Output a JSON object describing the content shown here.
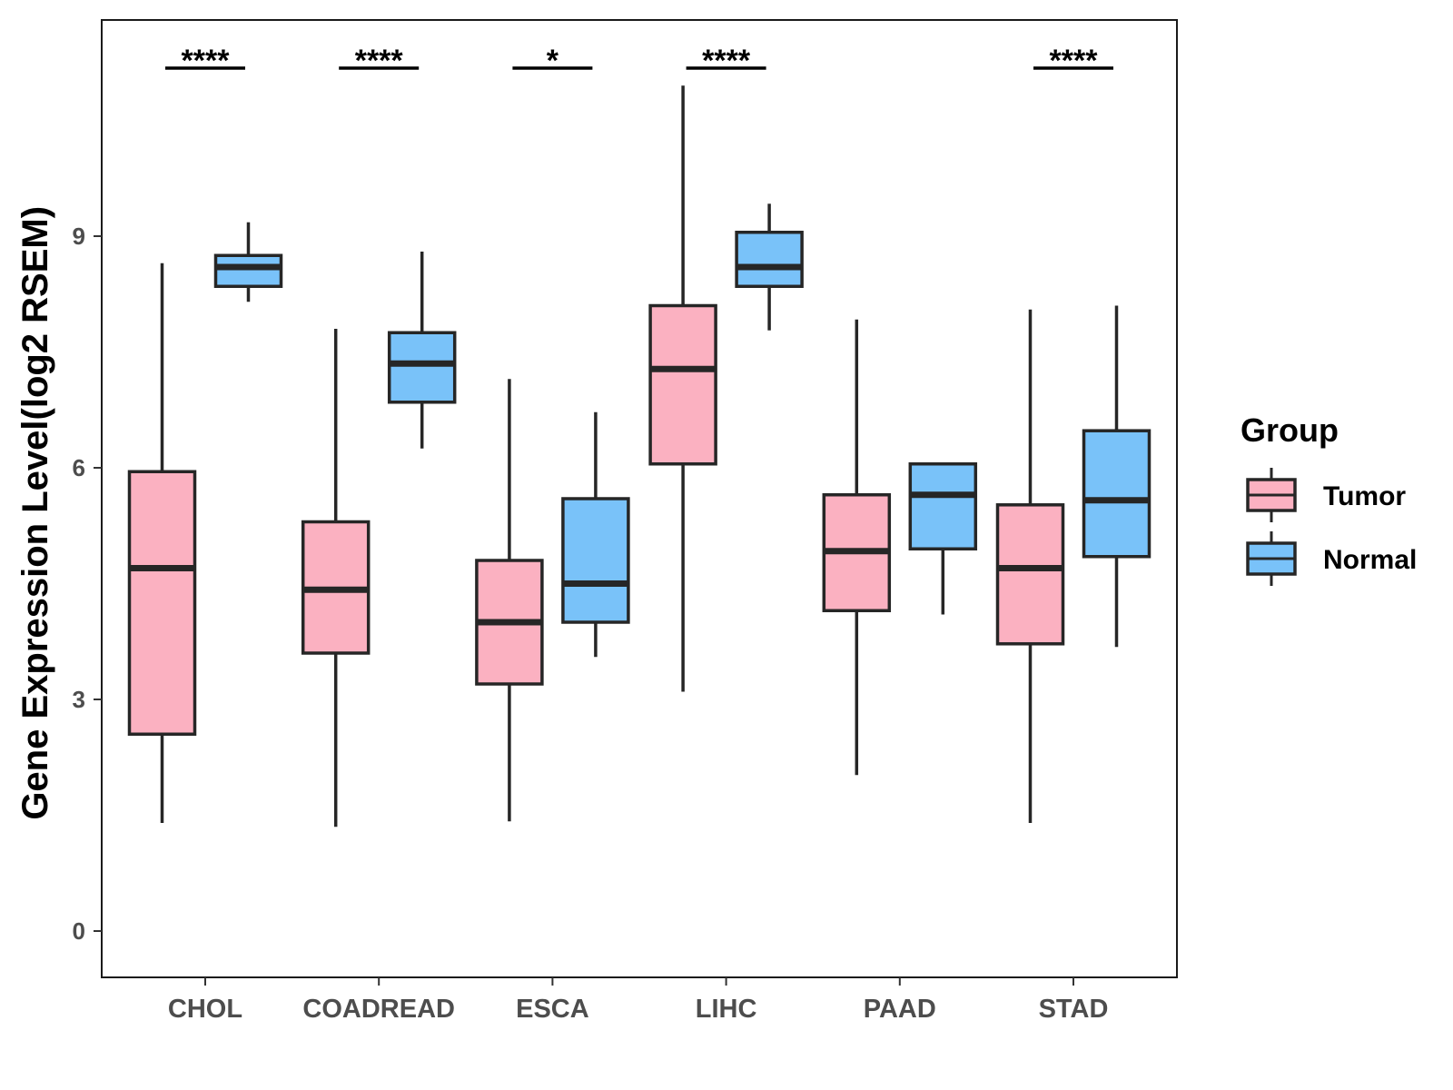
{
  "chart_data": {
    "type": "box",
    "title": "",
    "xlabel": "",
    "ylabel": "Gene Expression Level(log2 RSEM)",
    "ylim": [
      -0.6,
      11.8
    ],
    "yticks": [
      0,
      3,
      6,
      9
    ],
    "categories": [
      "CHOL",
      "COADREAD",
      "ESCA",
      "LIHC",
      "PAAD",
      "STAD"
    ],
    "legend": {
      "title": "Group",
      "position": "right",
      "entries": [
        {
          "name": "Tumor",
          "color": "#FBB1C1"
        },
        {
          "name": "Normal",
          "color": "#79C2F9"
        }
      ]
    },
    "series": [
      {
        "name": "Tumor",
        "color": "#FBB1C1",
        "boxes": [
          {
            "category": "CHOL",
            "whisker_low": 1.4,
            "q1": 2.55,
            "median": 4.7,
            "q3": 5.95,
            "whisker_high": 8.65
          },
          {
            "category": "COADREAD",
            "whisker_low": 1.35,
            "q1": 3.6,
            "median": 4.42,
            "q3": 5.3,
            "whisker_high": 7.8
          },
          {
            "category": "ESCA",
            "whisker_low": 1.42,
            "q1": 3.2,
            "median": 4.0,
            "q3": 4.8,
            "whisker_high": 7.15
          },
          {
            "category": "LIHC",
            "whisker_low": 3.1,
            "q1": 6.05,
            "median": 7.28,
            "q3": 8.1,
            "whisker_high": 10.95
          },
          {
            "category": "PAAD",
            "whisker_low": 2.02,
            "q1": 4.15,
            "median": 4.92,
            "q3": 5.65,
            "whisker_high": 7.92
          },
          {
            "category": "STAD",
            "whisker_low": 1.4,
            "q1": 3.72,
            "median": 4.7,
            "q3": 5.52,
            "whisker_high": 8.05
          }
        ]
      },
      {
        "name": "Normal",
        "color": "#79C2F9",
        "boxes": [
          {
            "category": "CHOL",
            "whisker_low": 8.15,
            "q1": 8.35,
            "median": 8.6,
            "q3": 8.75,
            "whisker_high": 9.18
          },
          {
            "category": "COADREAD",
            "whisker_low": 6.25,
            "q1": 6.85,
            "median": 7.35,
            "q3": 7.75,
            "whisker_high": 8.8
          },
          {
            "category": "ESCA",
            "whisker_low": 3.55,
            "q1": 4.0,
            "median": 4.5,
            "q3": 5.6,
            "whisker_high": 6.72
          },
          {
            "category": "LIHC",
            "whisker_low": 7.78,
            "q1": 8.35,
            "median": 8.6,
            "q3": 9.05,
            "whisker_high": 9.42
          },
          {
            "category": "PAAD",
            "whisker_low": 4.1,
            "q1": 4.95,
            "median": 5.65,
            "q3": 6.05,
            "whisker_high": 6.05
          },
          {
            "category": "STAD",
            "whisker_low": 3.68,
            "q1": 4.85,
            "median": 5.58,
            "q3": 6.48,
            "whisker_high": 8.1
          }
        ]
      }
    ],
    "significance": [
      {
        "category": "CHOL",
        "label": "****"
      },
      {
        "category": "COADREAD",
        "label": "****"
      },
      {
        "category": "ESCA",
        "label": "*"
      },
      {
        "category": "LIHC",
        "label": "****"
      },
      {
        "category": "PAAD",
        "label": ""
      },
      {
        "category": "STAD",
        "label": "****"
      }
    ]
  }
}
